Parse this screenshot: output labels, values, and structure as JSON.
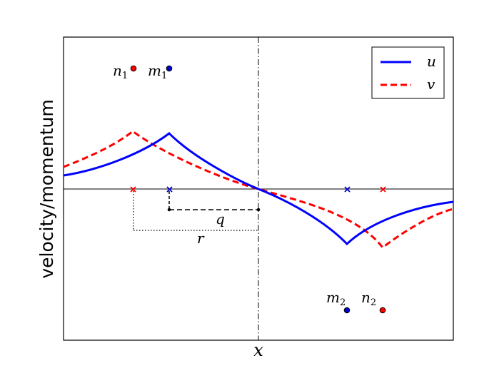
{
  "figure": {
    "ylabel": "velocity/momentum",
    "xlabel": "x",
    "legend": {
      "placement": "top-right",
      "items": [
        {
          "label": "u",
          "color": "#0000ff",
          "style": "solid"
        },
        {
          "label": "v",
          "color": "#ff0000",
          "style": "dashed"
        }
      ]
    },
    "points": {
      "n1": {
        "base": "n",
        "sub": "1",
        "color": "#ff0000"
      },
      "m1": {
        "base": "m",
        "sub": "1",
        "color": "#0000cc"
      },
      "m2": {
        "base": "m",
        "sub": "2",
        "color": "#0000cc"
      },
      "n2": {
        "base": "n",
        "sub": "2",
        "color": "#ff0000"
      }
    },
    "distances": {
      "q": "q",
      "r": "r"
    },
    "colors": {
      "u": "#0000ff",
      "v": "#ff0000",
      "axis": "#000000"
    }
  }
}
